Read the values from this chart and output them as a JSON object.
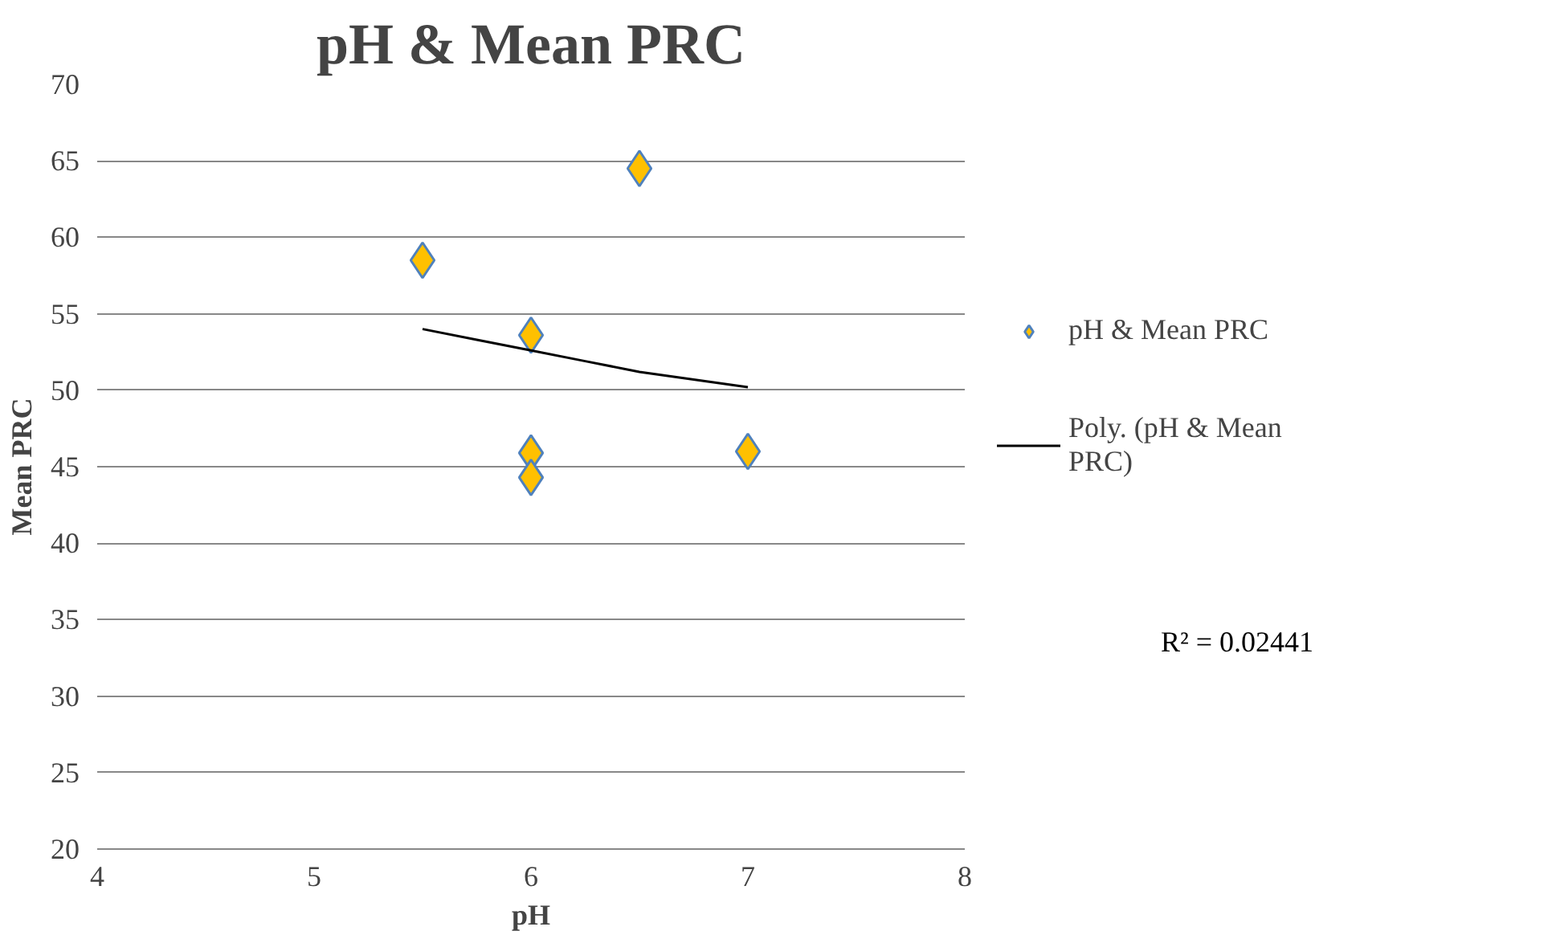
{
  "chart_data": {
    "type": "scatter",
    "title": "pH & Mean PRC",
    "xlabel": "pH",
    "ylabel": "Mean PRC",
    "xlim": [
      4,
      8
    ],
    "xticks": [
      4,
      5,
      6,
      7,
      8
    ],
    "ylim": [
      20,
      70
    ],
    "yticks": [
      20,
      25,
      30,
      35,
      40,
      45,
      50,
      55,
      60,
      65,
      70
    ],
    "grid": "y",
    "legend": "right",
    "marker": "diamond",
    "series": [
      {
        "name": "pH & Mean PRC",
        "color": "#ffc000",
        "x": [
          5.5,
          6.5,
          6,
          6,
          6,
          7
        ],
        "values": [
          58.5,
          64.5,
          53.6,
          45.9,
          44.3,
          46
        ]
      },
      {
        "name": "Poly. (pH & Mean PRC)",
        "type": "line",
        "color": "#000000",
        "marker": "none",
        "x": [
          5.5,
          5.75,
          6,
          6.25,
          6.5,
          6.75,
          7
        ],
        "values": [
          54.0,
          53.3,
          52.6,
          51.9,
          51.2,
          50.7,
          50.2
        ]
      }
    ],
    "annotations": [
      "R² = 0.02441"
    ]
  }
}
